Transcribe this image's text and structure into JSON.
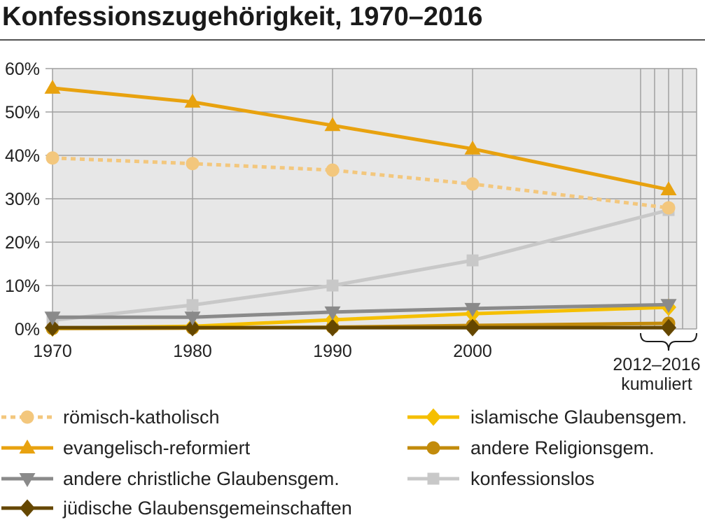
{
  "chart_data": {
    "type": "line",
    "title": "Konfessionszugehörigkeit, 1970–2016",
    "x": [
      "1970",
      "1980",
      "1990",
      "2000",
      "2012–2016"
    ],
    "x_cumulative_note": "kumuliert",
    "xlim": [
      1970,
      2016
    ],
    "ylim": [
      0,
      60
    ],
    "y_ticks": [
      0,
      10,
      20,
      30,
      40,
      50,
      60
    ],
    "y_tick_labels": [
      "0%",
      "10%",
      "20%",
      "30%",
      "40%",
      "50%",
      "60%"
    ],
    "grid": true,
    "legend_position": "bottom",
    "series": [
      {
        "name": "römisch-katholisch",
        "color": "#f3c77d",
        "dashed": true,
        "marker": "circle",
        "values": [
          39.4,
          38.1,
          36.6,
          33.4,
          27.9
        ]
      },
      {
        "name": "evangelisch-reformiert",
        "color": "#e8a20f",
        "dashed": false,
        "marker": "triangle-up",
        "values": [
          55.5,
          52.3,
          46.9,
          41.5,
          32.1
        ]
      },
      {
        "name": "andere christliche Glaubensgem.",
        "color": "#8a8a8a",
        "dashed": false,
        "marker": "triangle-down",
        "values": [
          2.7,
          2.7,
          3.9,
          4.7,
          5.6
        ]
      },
      {
        "name": "jüdische Glaubensgemeinschaften",
        "color": "#654700",
        "dashed": false,
        "marker": "diamond",
        "values": [
          0.3,
          0.3,
          0.3,
          0.3,
          0.3
        ]
      },
      {
        "name": "islamische Glaubensgem.",
        "color": "#f5bf00",
        "dashed": false,
        "marker": "diamond",
        "values": [
          0.2,
          0.6,
          2.1,
          3.5,
          5.0
        ]
      },
      {
        "name": "andere Religionsgem.",
        "color": "#c28b0b",
        "dashed": false,
        "marker": "circle",
        "values": [
          0.1,
          0.2,
          0.4,
          0.8,
          1.3
        ]
      },
      {
        "name": "konfessionslos",
        "color": "#c8c8c8",
        "dashed": false,
        "marker": "square",
        "values": [
          2.0,
          5.5,
          10.0,
          15.8,
          27.4
        ]
      }
    ]
  }
}
